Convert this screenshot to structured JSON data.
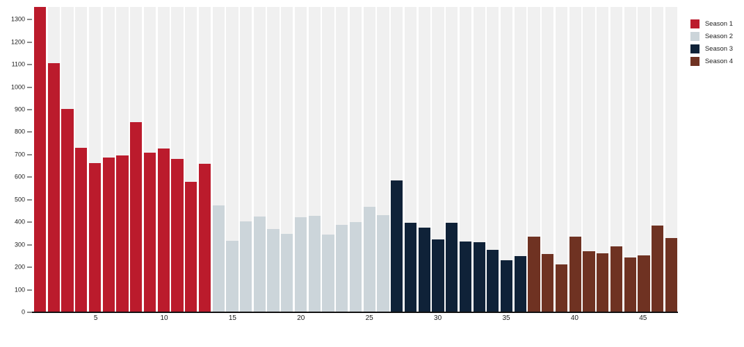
{
  "chart_data": {
    "type": "bar",
    "title": "",
    "xlabel": "",
    "ylabel": "",
    "x_meaning": "episode number (1-47, continuous across seasons)",
    "series": [
      {
        "name": "Season 1",
        "color": "#bb1b2c",
        "episode_range": [
          1,
          13
        ],
        "values": [
          1356,
          1106,
          903,
          730,
          662,
          687,
          696,
          844,
          708,
          727,
          680,
          579,
          660
        ]
      },
      {
        "name": "Season 2",
        "color": "#ccd5da",
        "episode_range": [
          14,
          26
        ],
        "values": [
          475,
          317,
          404,
          425,
          370,
          348,
          423,
          427,
          346,
          390,
          400,
          468,
          433
        ]
      },
      {
        "name": "Season 3",
        "color": "#0f2238",
        "episode_range": [
          27,
          36
        ],
        "values": [
          585,
          397,
          375,
          323,
          399,
          315,
          312,
          277,
          232,
          249
        ]
      },
      {
        "name": "Season 4",
        "color": "#6f3222",
        "episode_range": [
          37,
          47
        ],
        "values": [
          336,
          259,
          213,
          336,
          271,
          262,
          293,
          243,
          253,
          385,
          330
        ]
      }
    ],
    "xticks": [
      5,
      10,
      15,
      20,
      25,
      30,
      35,
      40,
      45
    ],
    "yticks": [
      0,
      100,
      200,
      300,
      400,
      500,
      600,
      700,
      800,
      900,
      1000,
      1100,
      1200,
      1300
    ],
    "ylim": [
      0,
      1356
    ],
    "grid": false,
    "legend": {
      "position": "top-right",
      "entries": [
        "Season 1",
        "Season 2",
        "Season 3",
        "Season 4"
      ]
    },
    "styles": {
      "background_band_color": "#f0f0f0",
      "axis_color": "#1a1a1a",
      "plot_background": "#ffffff"
    }
  }
}
